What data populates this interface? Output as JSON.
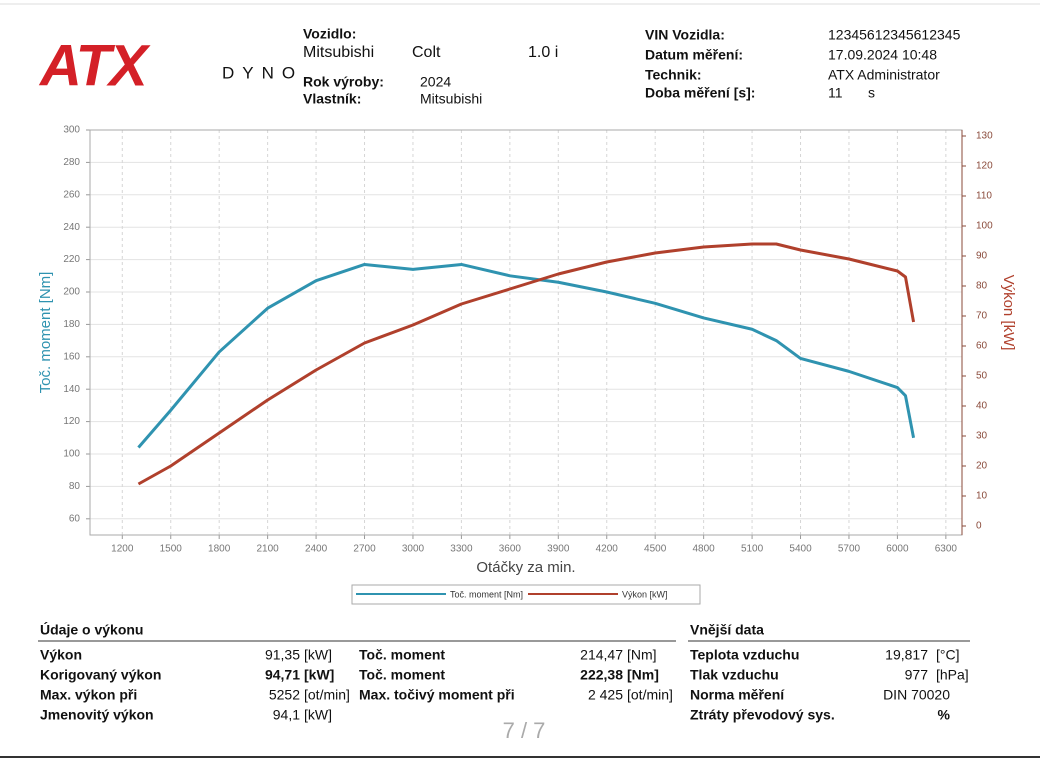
{
  "header": {
    "logo": "ATX",
    "logo_sub": "DYNO",
    "vehicle_label": "Vozidlo:",
    "make": "Mitsubishi",
    "model": "Colt",
    "engine": "1.0 i",
    "year_label": "Rok výroby:",
    "year": "2024",
    "owner_label": "Vlastník:",
    "owner": "Mitsubishi",
    "vin_label": "VIN Vozidla:",
    "vin": "12345612345612345",
    "date_label": "Datum měření:",
    "date": "17.09.2024 10:48",
    "tech_label": "Technik:",
    "tech": "ATX Administrator",
    "duration_label": "Doba měření [s]:",
    "duration": "11",
    "duration_unit": "s"
  },
  "chart_data": {
    "type": "line",
    "y_label": "Toč. moment [Nm]",
    "y2_label": "Výkon [kW]",
    "x_label": "Otáčky za min.",
    "x": [
      1300,
      1500,
      1800,
      2100,
      2400,
      2700,
      3000,
      3300,
      3600,
      3900,
      4200,
      4500,
      4800,
      5100,
      5250,
      5400,
      5700,
      6000,
      6050,
      6100
    ],
    "series": [
      {
        "name": "Toč. moment [Nm]",
        "color": "#2f93b0",
        "values": [
          104,
          127,
          163,
          190,
          207,
          217,
          214,
          217,
          210,
          206,
          200,
          193,
          184,
          177,
          170,
          159,
          151,
          141,
          136,
          110
        ]
      },
      {
        "name": "Výkon [kW]",
        "color": "#b0402c",
        "axis": "y2",
        "values": [
          14,
          20,
          31,
          42,
          52,
          61,
          67,
          74,
          79,
          84,
          88,
          91,
          93,
          94,
          94,
          92,
          89,
          85,
          83,
          68
        ]
      }
    ],
    "xlim": [
      1000,
      6400
    ],
    "xticks": [
      1200,
      1500,
      1800,
      2100,
      2400,
      2700,
      3000,
      3300,
      3600,
      3900,
      4200,
      4500,
      4800,
      5100,
      5400,
      5700,
      6000,
      6300
    ],
    "ylim": [
      50,
      300
    ],
    "yticks": [
      60,
      80,
      100,
      120,
      140,
      160,
      180,
      200,
      220,
      240,
      260,
      280,
      300
    ],
    "y2lim": [
      -3,
      132
    ],
    "y2ticks": [
      0,
      10,
      20,
      30,
      40,
      50,
      60,
      70,
      80,
      90,
      100,
      110,
      120,
      130
    ],
    "grid": true,
    "legend": "bottom"
  },
  "performance": {
    "title": "Údaje o výkonu",
    "rows": [
      [
        "Výkon",
        "91,35",
        "[kW]",
        "Toč. moment",
        "214,47",
        "[Nm]"
      ],
      [
        "Korigovaný výkon",
        "94,71",
        "[kW]",
        "Toč. moment",
        "222,38",
        "[Nm]"
      ],
      [
        "Max. výkon při",
        "5252",
        "[ot/min]",
        "Max. točivý moment při",
        "2 425",
        "[ot/min]"
      ],
      [
        "Jmenovitý výkon",
        "94,1",
        "[kW]"
      ]
    ]
  },
  "external": {
    "title": "Vnější data",
    "rows": [
      [
        "Teplota vzduchu",
        "19,817",
        "[°C]"
      ],
      [
        "Tlak vzduchu",
        "977",
        "[hPa]"
      ],
      [
        "Norma měření",
        "DIN 70020"
      ],
      [
        "Ztráty převodový sys.",
        "%"
      ]
    ]
  },
  "page": "7 / 7"
}
